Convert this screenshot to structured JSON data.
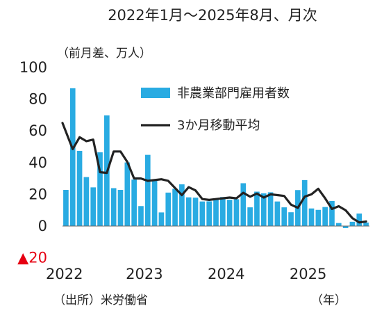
{
  "chart_data": {
    "type": "bar",
    "title": "2022年1月～2025年8月、月次",
    "ylabel": "（前月差、万人）",
    "xlabel": "（年）",
    "source": "（出所）米労働省",
    "ylim": [
      -20,
      100
    ],
    "yticks": [
      {
        "value": 100,
        "label": "100"
      },
      {
        "value": 80,
        "label": "80"
      },
      {
        "value": 60,
        "label": "60"
      },
      {
        "value": 40,
        "label": "40"
      },
      {
        "value": 20,
        "label": "20"
      },
      {
        "value": 0,
        "label": "0"
      },
      {
        "value": -20,
        "label": "▲20"
      }
    ],
    "xticks": [
      {
        "index": 0,
        "label": "2022"
      },
      {
        "index": 12,
        "label": "2023"
      },
      {
        "index": 24,
        "label": "2024"
      },
      {
        "index": 36,
        "label": "2025"
      }
    ],
    "legend_position": "top-right",
    "grid": false,
    "series": [
      {
        "name": "非農業部門雇用者数",
        "type": "bar",
        "color": "#29abe2",
        "values": [
          22.8,
          86.9,
          47.4,
          30.9,
          24.4,
          46.5,
          69.8,
          23.9,
          22.8,
          40.1,
          29.3,
          12.6,
          44.9,
          28.5,
          8.6,
          21.1,
          23.5,
          26.3,
          18.1,
          17.9,
          15.5,
          15.6,
          16.9,
          18.3,
          16.6,
          16.9,
          27.0,
          11.8,
          21.7,
          20.6,
          21.3,
          15.5,
          11.8,
          8.7,
          22.7,
          29.0,
          11.1,
          10.2,
          12.0,
          15.8,
          1.9,
          -1.3,
          2.7,
          7.9,
          2.2
        ]
      },
      {
        "name": "3か月移動平均",
        "type": "line",
        "color": "#222222",
        "values": [
          65.0,
          48.5,
          56.0,
          53.5,
          54.5,
          34.0,
          33.5,
          47.0,
          47.0,
          40.5,
          30.0,
          30.0,
          28.5,
          29.0,
          29.5,
          28.5,
          24.0,
          19.5,
          24.5,
          22.5,
          17.0,
          16.5,
          17.0,
          17.5,
          18.0,
          17.5,
          21.0,
          18.5,
          20.5,
          18.0,
          20.0,
          19.5,
          19.0,
          13.5,
          11.5,
          18.5,
          20.0,
          23.5,
          17.5,
          10.8,
          12.5,
          10.0,
          5.0,
          2.3,
          2.9
        ]
      }
    ]
  }
}
